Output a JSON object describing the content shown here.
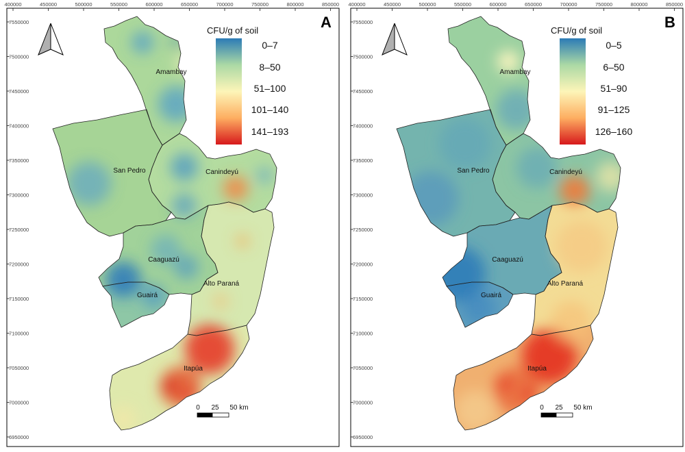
{
  "x_ticks": [
    "400000",
    "450000",
    "500000",
    "550000",
    "600000",
    "650000",
    "700000",
    "750000",
    "800000",
    "850000"
  ],
  "y_ticks": [
    "7550000",
    "7500000",
    "7450000",
    "7400000",
    "7350000",
    "7300000",
    "7250000",
    "7200000",
    "7150000",
    "7100000",
    "7050000",
    "7000000",
    "6950000"
  ],
  "regions": [
    "Amambay",
    "San Pedro",
    "Canindeyú",
    "Caaguazú",
    "Alto Paraná",
    "Guairá",
    "Itapúa"
  ],
  "scale_bar": {
    "labels": [
      "0",
      "25",
      "50 km"
    ]
  },
  "panels": [
    {
      "id": "A",
      "letter": "A",
      "legend_title": "CFU/g of soil",
      "legend_classes": [
        "0–7",
        "8–50",
        "51–100",
        "101–140",
        "141–193"
      ],
      "colors": {
        "base": "#b5dca1",
        "regions": [
          "#acd89b",
          "#a6d496",
          "#b4dca0",
          "#a1d29a",
          "#d6e8b0",
          "#8ec7a6",
          "#dfe9ad"
        ]
      }
    },
    {
      "id": "B",
      "letter": "B",
      "legend_title": "CFU/g of soil",
      "legend_classes": [
        "0–5",
        "6–50",
        "51–90",
        "91–125",
        "126–160"
      ],
      "colors": {
        "base": "#8cc8a4",
        "regions": [
          "#9bd0a0",
          "#74b4ae",
          "#8cc5a4",
          "#6aaab4",
          "#f3dc95",
          "#5f9fbd",
          "#f0b070"
        ]
      }
    }
  ],
  "legend_colors": [
    "#2c7bb6",
    "#abd9a5",
    "#fdf5b8",
    "#fdae61",
    "#d7191c"
  ]
}
